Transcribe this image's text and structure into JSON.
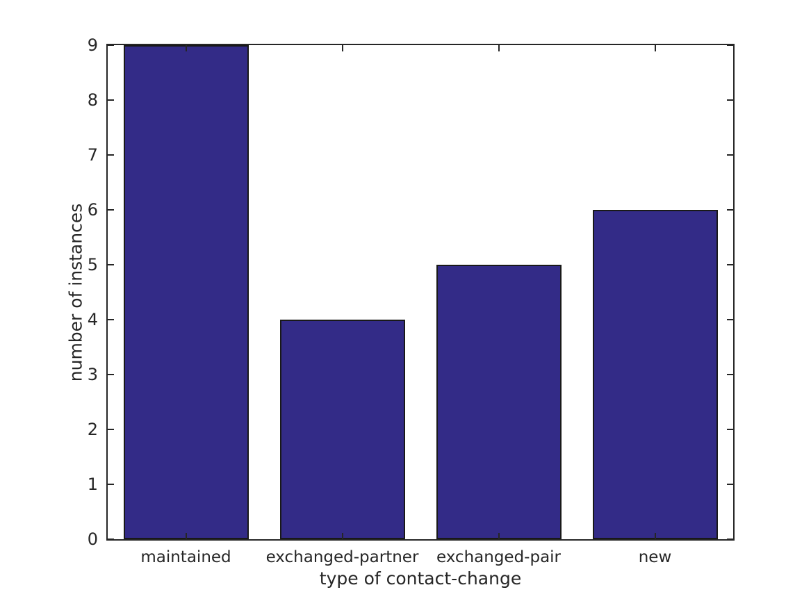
{
  "figure": {
    "background_color": "#ffffff"
  },
  "chart_data": {
    "type": "bar",
    "title": "",
    "xlabel": "type of contact-change",
    "ylabel": "number of instances",
    "categories": [
      "maintained",
      "exchanged-partner",
      "exchanged-pair",
      "new"
    ],
    "values": [
      9,
      4,
      5,
      6
    ],
    "series": [
      {
        "name": "number of instances",
        "values": [
          9,
          4,
          5,
          6
        ]
      }
    ],
    "ylim": [
      0,
      9
    ],
    "yticks": [
      0,
      1,
      2,
      3,
      4,
      5,
      6,
      7,
      8,
      9
    ],
    "bar_width_fraction": 0.8,
    "grid": false,
    "legend": "none",
    "tick_style": "inward, mirrored on all four spines",
    "colors": {
      "bar_fill": "#332b87",
      "bar_edge": "#191919",
      "axis": "#262626",
      "text": "#262626",
      "background": "#ffffff"
    }
  }
}
